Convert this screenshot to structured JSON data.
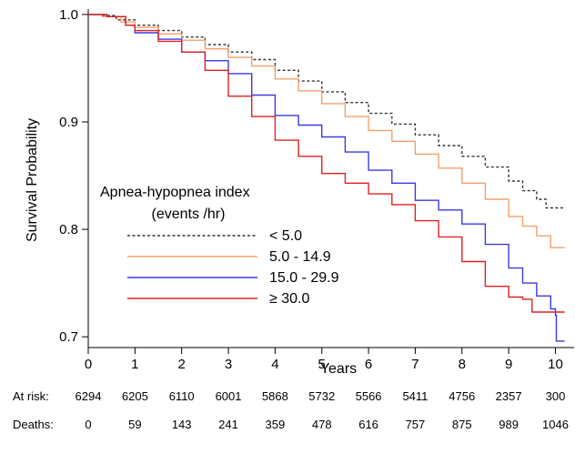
{
  "chart_data": {
    "type": "line",
    "title": "",
    "xlabel": "Years",
    "ylabel": "Survival Probability",
    "xlim": [
      0,
      10.4
    ],
    "ylim": [
      0.69,
      1.005
    ],
    "x_ticks": [
      0,
      1,
      2,
      3,
      4,
      5,
      6,
      7,
      8,
      9,
      10
    ],
    "y_ticks": [
      0.7,
      0.8,
      0.9,
      1.0
    ],
    "y_tick_labels": [
      "0.7",
      "0.8",
      "0.9",
      "1.0"
    ],
    "grid": false,
    "legend": {
      "title_line1": "Apnea-hypopnea index",
      "title_line2": "(events /hr)",
      "placement": "center-left"
    },
    "series": [
      {
        "name": "< 5.0",
        "color": "#333333",
        "dashed": true,
        "points": [
          [
            0,
            1.0
          ],
          [
            0.3,
            0.999
          ],
          [
            0.6,
            0.995
          ],
          [
            1,
            0.99
          ],
          [
            1.5,
            0.985
          ],
          [
            2,
            0.979
          ],
          [
            2.5,
            0.972
          ],
          [
            3,
            0.965
          ],
          [
            3.5,
            0.958
          ],
          [
            4,
            0.948
          ],
          [
            4.5,
            0.938
          ],
          [
            5,
            0.928
          ],
          [
            5.5,
            0.918
          ],
          [
            6,
            0.908
          ],
          [
            6.5,
            0.898
          ],
          [
            7,
            0.888
          ],
          [
            7.5,
            0.878
          ],
          [
            8,
            0.868
          ],
          [
            8.5,
            0.858
          ],
          [
            9,
            0.845
          ],
          [
            9.3,
            0.836
          ],
          [
            9.6,
            0.828
          ],
          [
            9.8,
            0.82
          ],
          [
            10.2,
            0.82
          ]
        ]
      },
      {
        "name": "5.0 - 14.9",
        "color": "#f2a06a",
        "dashed": false,
        "points": [
          [
            0,
            1.0
          ],
          [
            0.3,
            0.998
          ],
          [
            0.7,
            0.993
          ],
          [
            1,
            0.988
          ],
          [
            1.5,
            0.982
          ],
          [
            2,
            0.976
          ],
          [
            2.5,
            0.968
          ],
          [
            3,
            0.96
          ],
          [
            3.5,
            0.952
          ],
          [
            4,
            0.94
          ],
          [
            4.5,
            0.929
          ],
          [
            5,
            0.917
          ],
          [
            5.5,
            0.905
          ],
          [
            6,
            0.892
          ],
          [
            6.5,
            0.882
          ],
          [
            7,
            0.87
          ],
          [
            7.5,
            0.857
          ],
          [
            8,
            0.843
          ],
          [
            8.5,
            0.828
          ],
          [
            9,
            0.812
          ],
          [
            9.3,
            0.803
          ],
          [
            9.6,
            0.794
          ],
          [
            9.9,
            0.783
          ],
          [
            10.2,
            0.783
          ]
        ]
      },
      {
        "name": "15.0 - 29.9",
        "color": "#3a3ae0",
        "dashed": false,
        "points": [
          [
            0,
            1.0
          ],
          [
            0.4,
            0.998
          ],
          [
            0.8,
            0.99
          ],
          [
            1,
            0.983
          ],
          [
            1.5,
            0.977
          ],
          [
            2,
            0.965
          ],
          [
            2.5,
            0.957
          ],
          [
            3,
            0.945
          ],
          [
            3.5,
            0.925
          ],
          [
            4,
            0.906
          ],
          [
            4.5,
            0.897
          ],
          [
            5,
            0.886
          ],
          [
            5.5,
            0.872
          ],
          [
            6,
            0.855
          ],
          [
            6.5,
            0.843
          ],
          [
            7,
            0.827
          ],
          [
            7.5,
            0.818
          ],
          [
            8,
            0.805
          ],
          [
            8.5,
            0.786
          ],
          [
            9,
            0.764
          ],
          [
            9.3,
            0.75
          ],
          [
            9.6,
            0.738
          ],
          [
            9.9,
            0.726
          ],
          [
            10,
            0.72
          ],
          [
            10.02,
            0.696
          ],
          [
            10.2,
            0.696
          ]
        ]
      },
      {
        "name": "≥ 30.0",
        "color": "#e02020",
        "dashed": false,
        "points": [
          [
            0,
            1.0
          ],
          [
            0.4,
            0.998
          ],
          [
            0.8,
            0.99
          ],
          [
            1,
            0.985
          ],
          [
            1.5,
            0.975
          ],
          [
            2,
            0.965
          ],
          [
            2.5,
            0.948
          ],
          [
            3,
            0.924
          ],
          [
            3.5,
            0.905
          ],
          [
            4,
            0.883
          ],
          [
            4.5,
            0.868
          ],
          [
            5,
            0.852
          ],
          [
            5.5,
            0.843
          ],
          [
            6,
            0.833
          ],
          [
            6.5,
            0.823
          ],
          [
            7,
            0.808
          ],
          [
            7.5,
            0.793
          ],
          [
            8,
            0.77
          ],
          [
            8.5,
            0.747
          ],
          [
            9,
            0.737
          ],
          [
            9.3,
            0.735
          ],
          [
            9.5,
            0.723
          ],
          [
            10.2,
            0.723
          ]
        ]
      }
    ],
    "at_risk": {
      "label": "At risk:",
      "values": [
        "6294",
        "6205",
        "6110",
        "6001",
        "5868",
        "5732",
        "5566",
        "5411",
        "4756",
        "2357",
        "300"
      ]
    },
    "deaths": {
      "label": "Deaths:",
      "values": [
        "0",
        "59",
        "143",
        "241",
        "359",
        "478",
        "616",
        "757",
        "875",
        "989",
        "1046"
      ]
    }
  }
}
